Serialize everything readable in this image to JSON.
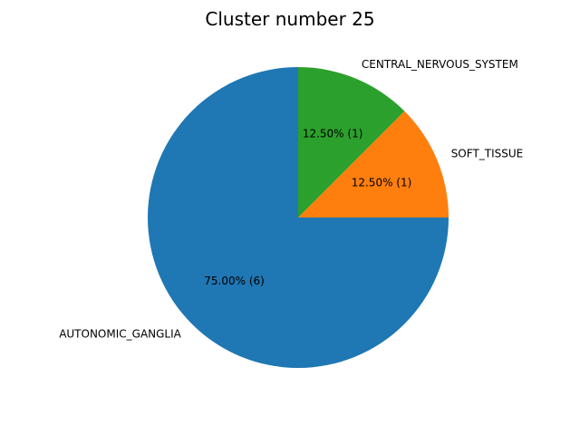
{
  "chart_data": {
    "type": "pie",
    "title": "Cluster number 25",
    "slices": [
      {
        "label": "AUTONOMIC_GANGLIA",
        "count": 6,
        "percent_label": "75.00%  (6)",
        "color": "#1f77b4"
      },
      {
        "label": "SOFT_TISSUE",
        "count": 1,
        "percent_label": "12.50%  (1)",
        "color": "#ff7f0e"
      },
      {
        "label": "CENTRAL_NERVOUS_SYSTEM",
        "count": 1,
        "percent_label": "12.50%  (1)",
        "color": "#2ca02c"
      }
    ],
    "total": 8,
    "legend": "none"
  }
}
